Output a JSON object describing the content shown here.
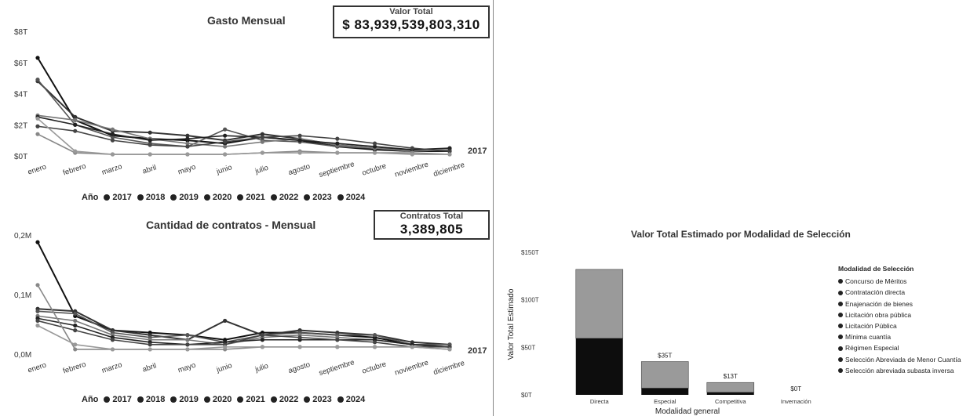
{
  "chart_data": [
    {
      "type": "line",
      "title": "Gasto Mensual",
      "x": [
        "enero",
        "febrero",
        "marzo",
        "abril",
        "mayo",
        "junio",
        "julio",
        "agosto",
        "septiembre",
        "octubre",
        "noviembre",
        "diciembre"
      ],
      "y_ticks": [
        "$0T",
        "$2T",
        "$4T",
        "$6T",
        "$8T"
      ],
      "ylim": [
        0,
        8
      ],
      "series": [
        {
          "name": "2017",
          "values": [
            6.3,
            2.3,
            1.3,
            1.1,
            1.0,
            0.8,
            1.2,
            1.0,
            0.6,
            0.4,
            0.3,
            0.3
          ]
        },
        {
          "name": "2018",
          "values": [
            4.8,
            2.5,
            1.6,
            1.5,
            1.3,
            1.0,
            1.4,
            1.1,
            0.7,
            0.5,
            0.4,
            0.3
          ]
        },
        {
          "name": "2019",
          "values": [
            4.9,
            2.0,
            1.2,
            0.8,
            0.6,
            1.7,
            1.0,
            0.9,
            0.6,
            0.5,
            0.3,
            0.4
          ]
        },
        {
          "name": "2020",
          "values": [
            2.6,
            2.3,
            1.7,
            1.1,
            0.8,
            0.6,
            0.9,
            1.1,
            0.7,
            0.5,
            0.3,
            0.4
          ]
        },
        {
          "name": "2021",
          "values": [
            2.5,
            2.0,
            1.4,
            1.0,
            1.1,
            1.3,
            1.2,
            1.0,
            0.8,
            0.6,
            0.4,
            0.5
          ]
        },
        {
          "name": "2022",
          "values": [
            1.9,
            1.6,
            1.0,
            0.7,
            0.6,
            0.9,
            1.2,
            1.3,
            1.1,
            0.8,
            0.5,
            0.3
          ]
        },
        {
          "name": "2023",
          "values": [
            1.4,
            0.2,
            0.1,
            0.1,
            0.1,
            0.1,
            0.2,
            0.3,
            0.2,
            0.2,
            0.2,
            0.1
          ]
        },
        {
          "name": "2024",
          "values": [
            2.4,
            0.3,
            0.1,
            0.1,
            0.1,
            0.1,
            0.2,
            0.2,
            0.2,
            0.2,
            0.1,
            0.1
          ]
        }
      ],
      "legend_title": "Año"
    },
    {
      "type": "line",
      "title": "Cantidad de contratos - Mensual",
      "x": [
        "enero",
        "febrero",
        "marzo",
        "abril",
        "mayo",
        "junio",
        "julio",
        "agosto",
        "septiembre",
        "octubre",
        "noviembre",
        "diciembre"
      ],
      "y_ticks": [
        "0,0M",
        "0,1M",
        "0,2M"
      ],
      "ylim": [
        0,
        0.25
      ],
      "series": [
        {
          "name": "2017",
          "values": [
            0.235,
            0.08,
            0.05,
            0.045,
            0.04,
            0.03,
            0.045,
            0.045,
            0.04,
            0.035,
            0.02,
            0.015
          ]
        },
        {
          "name": "2018",
          "values": [
            0.095,
            0.09,
            0.05,
            0.04,
            0.03,
            0.07,
            0.04,
            0.05,
            0.045,
            0.04,
            0.025,
            0.02
          ]
        },
        {
          "name": "2019",
          "values": [
            0.09,
            0.085,
            0.045,
            0.035,
            0.04,
            0.025,
            0.04,
            0.045,
            0.04,
            0.04,
            0.02,
            0.02
          ]
        },
        {
          "name": "2020",
          "values": [
            0.08,
            0.07,
            0.04,
            0.03,
            0.03,
            0.02,
            0.035,
            0.04,
            0.035,
            0.03,
            0.02,
            0.015
          ]
        },
        {
          "name": "2021",
          "values": [
            0.075,
            0.06,
            0.035,
            0.025,
            0.02,
            0.025,
            0.03,
            0.03,
            0.03,
            0.03,
            0.02,
            0.015
          ]
        },
        {
          "name": "2022",
          "values": [
            0.07,
            0.05,
            0.03,
            0.02,
            0.02,
            0.02,
            0.04,
            0.035,
            0.03,
            0.025,
            0.015,
            0.015
          ]
        },
        {
          "name": "2023",
          "values": [
            0.145,
            0.01,
            0.01,
            0.01,
            0.01,
            0.01,
            0.015,
            0.015,
            0.015,
            0.015,
            0.015,
            0.01
          ]
        },
        {
          "name": "2024",
          "values": [
            0.06,
            0.02,
            0.01,
            0.01,
            0.01,
            0.015,
            0.015,
            0.015,
            0.015,
            0.015,
            0.015,
            0.01
          ]
        }
      ],
      "legend_title": "Año"
    },
    {
      "type": "bar",
      "stacked": true,
      "title": "Valor Total Estimado por Modalidad de Selección",
      "xlabel": "Modalidad general",
      "ylabel": "Valor Total Estimado",
      "categories": [
        "Directa",
        "Especial",
        "Competitiva",
        "Invernación"
      ],
      "y_ticks": [
        "$0T",
        "$50T",
        "$100T",
        "$150T"
      ],
      "ylim": [
        0,
        150
      ],
      "values": [
        132,
        35,
        13,
        0
      ],
      "data_labels": [
        "",
        "$35T",
        "$13T",
        "$0T"
      ],
      "legend_title": "Modalidad de Selección",
      "legend": [
        "Concurso de Méritos",
        "Contratación directa",
        "Enajenación de bienes",
        "Licitación obra pública",
        "Licitación Pública",
        "Mínima cuantía",
        "Régimen Especial",
        "Selección Abreviada de Menor Cuantía",
        "Selección abreviada subasta inversa"
      ]
    }
  ],
  "kpis": {
    "valor_total": {
      "label": "Valor Total",
      "value": "$ 83,939,539,803,310"
    },
    "contratos_total": {
      "label": "Contratos Total",
      "value": "3,389,805"
    }
  },
  "legend": {
    "title": "Año",
    "items": [
      "2017",
      "2018",
      "2019",
      "2020",
      "2021",
      "2022",
      "2023",
      "2024"
    ]
  },
  "side_labels": {
    "top": "2017",
    "bottom": "2017"
  },
  "colors": {
    "line_dark": "#1a1a1a",
    "line_mid": "#666666",
    "line_light": "#aaaaaa",
    "bar_dark": "#0d0d0d",
    "bar_noise": "#8a8a8a"
  }
}
